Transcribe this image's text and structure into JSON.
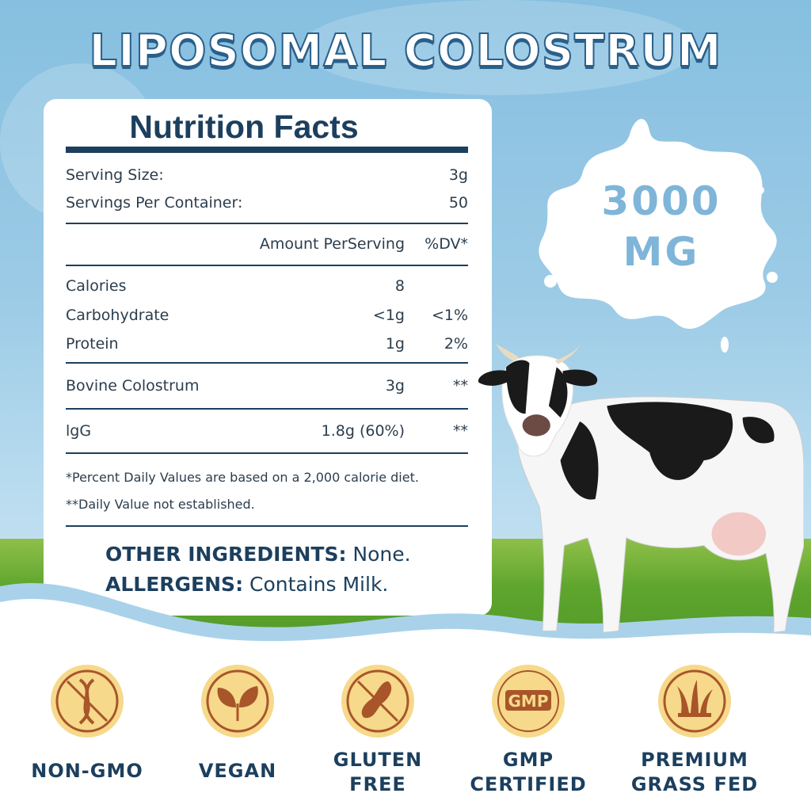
{
  "title": "LIPOSOMAL COLOSTRUM",
  "nutrition": {
    "heading": "Nutrition Facts",
    "serving_size": {
      "label": "Serving Size:",
      "value": "3g"
    },
    "servings_per_container": {
      "label": "Servings Per Container:",
      "value": "50"
    },
    "header": {
      "amount": "Amount PerServing",
      "dv": "%DV*"
    },
    "rows": [
      {
        "label": "Calories",
        "amount": "8",
        "dv": ""
      },
      {
        "label": "Carbohydrate",
        "amount": "<1g",
        "dv": "<1%"
      },
      {
        "label": "Protein",
        "amount": "1g",
        "dv": "2%"
      },
      {
        "label": "Bovine Colostrum",
        "amount": "3g",
        "dv": "**"
      },
      {
        "label": "lgG",
        "amount": "1.8g (60%)",
        "dv": "**"
      }
    ],
    "footnotes": [
      "*Percent Daily Values are based on a 2,000 calorie diet.",
      "**Daily Value not established."
    ],
    "other_ingredients": {
      "label": "OTHER INGREDIENTS:",
      "value": " None."
    },
    "allergens": {
      "label": "ALLERGENS:",
      "value": " Contains Milk."
    }
  },
  "dose": {
    "line1": "3000",
    "line2": "MG"
  },
  "badges": [
    {
      "icon": "no-dna-icon",
      "label1": "NON-GMO",
      "label2": ""
    },
    {
      "icon": "leaf-icon",
      "label1": "VEGAN",
      "label2": ""
    },
    {
      "icon": "no-wheat-icon",
      "label1": "GLUTEN",
      "label2": "FREE"
    },
    {
      "icon": "gmp-seal-icon",
      "label1": "GMP",
      "label2": "CERTIFIED",
      "seal_text": "GMP"
    },
    {
      "icon": "grass-icon",
      "label1": "PREMIUM",
      "label2": "GRASS FED"
    }
  ],
  "colors": {
    "navy": "#1c3f5e",
    "sky": "#86bfe0",
    "badge_gold": "#f6d98a",
    "badge_brown": "#a8552a"
  }
}
